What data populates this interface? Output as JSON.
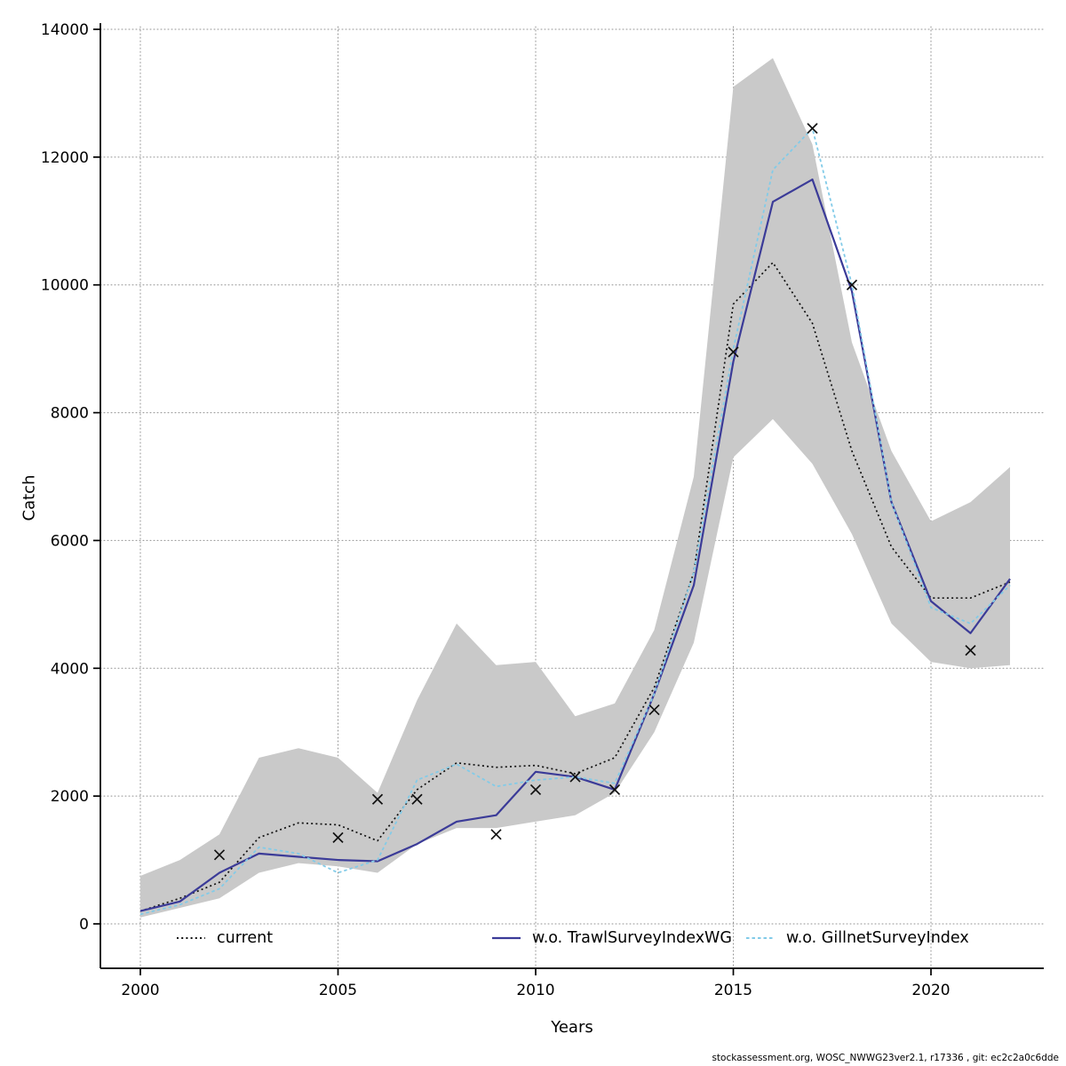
{
  "chart_data": {
    "type": "line",
    "title": "",
    "xlabel": "Years",
    "ylabel": "Catch",
    "ylim": [
      0,
      14000
    ],
    "grid": true,
    "legend_position": "bottom-inside",
    "x_ticks": [
      2000,
      2005,
      2010,
      2015,
      2020
    ],
    "y_ticks": [
      0,
      2000,
      4000,
      6000,
      8000,
      10000,
      12000,
      14000
    ],
    "x": [
      2000,
      2001,
      2002,
      2003,
      2004,
      2005,
      2006,
      2007,
      2008,
      2009,
      2010,
      2011,
      2012,
      2013,
      2014,
      2015,
      2016,
      2017,
      2018,
      2019,
      2020,
      2021,
      2022
    ],
    "band": {
      "name": "current-confidence-interval",
      "color": "#c9c9c9",
      "lower": [
        100,
        250,
        400,
        800,
        950,
        900,
        800,
        1250,
        1500,
        1500,
        1600,
        1700,
        2050,
        3000,
        4400,
        7300,
        7900,
        7200,
        6100,
        4700,
        4100,
        4000,
        4050
      ],
      "upper": [
        750,
        1000,
        1400,
        2600,
        2750,
        2600,
        2050,
        3500,
        4700,
        4050,
        4100,
        3250,
        3450,
        4600,
        7000,
        13100,
        13550,
        12200,
        9100,
        7400,
        6300,
        6600,
        7150
      ]
    },
    "series": [
      {
        "name": "current",
        "color": "#111111",
        "dash": "2 3.2",
        "width": 1.7,
        "values": [
          200,
          400,
          650,
          1350,
          1580,
          1550,
          1300,
          2100,
          2520,
          2450,
          2480,
          2350,
          2600,
          3700,
          5500,
          9700,
          10350,
          9400,
          7400,
          5900,
          5100,
          5100,
          5350
        ]
      },
      {
        "name": "w.o. TrawlSurveyIndexWG",
        "color": "#3b3b98",
        "dash": "",
        "width": 2.2,
        "values": [
          200,
          350,
          800,
          1100,
          1050,
          1000,
          980,
          1250,
          1600,
          1700,
          2380,
          2300,
          2100,
          3600,
          5300,
          8800,
          11300,
          11650,
          9900,
          6600,
          5050,
          4550,
          5400
        ]
      },
      {
        "name": "w.o. GillnetSurveyIndex",
        "color": "#82cbe8",
        "dash": "3.5 3",
        "width": 1.8,
        "values": [
          150,
          300,
          550,
          1200,
          1100,
          800,
          1000,
          2250,
          2500,
          2150,
          2250,
          2300,
          2200,
          3600,
          5500,
          9000,
          11800,
          12450,
          10000,
          6600,
          4950,
          4700,
          5300
        ]
      }
    ],
    "observations": {
      "marker": "x",
      "color": "#101010",
      "points": [
        {
          "year": 2002,
          "value": 1080
        },
        {
          "year": 2005,
          "value": 1350
        },
        {
          "year": 2006,
          "value": 1950
        },
        {
          "year": 2007,
          "value": 1950
        },
        {
          "year": 2009,
          "value": 1400
        },
        {
          "year": 2010,
          "value": 2100
        },
        {
          "year": 2011,
          "value": 2300
        },
        {
          "year": 2012,
          "value": 2100
        },
        {
          "year": 2013,
          "value": 3350
        },
        {
          "year": 2015,
          "value": 8950
        },
        {
          "year": 2017,
          "value": 12450
        },
        {
          "year": 2018,
          "value": 10000
        },
        {
          "year": 2021,
          "value": 4280
        }
      ]
    }
  },
  "footer": "stockassessment.org, WOSC_NWWG23ver2.1, r17336 , git: ec2c2a0c6dde"
}
